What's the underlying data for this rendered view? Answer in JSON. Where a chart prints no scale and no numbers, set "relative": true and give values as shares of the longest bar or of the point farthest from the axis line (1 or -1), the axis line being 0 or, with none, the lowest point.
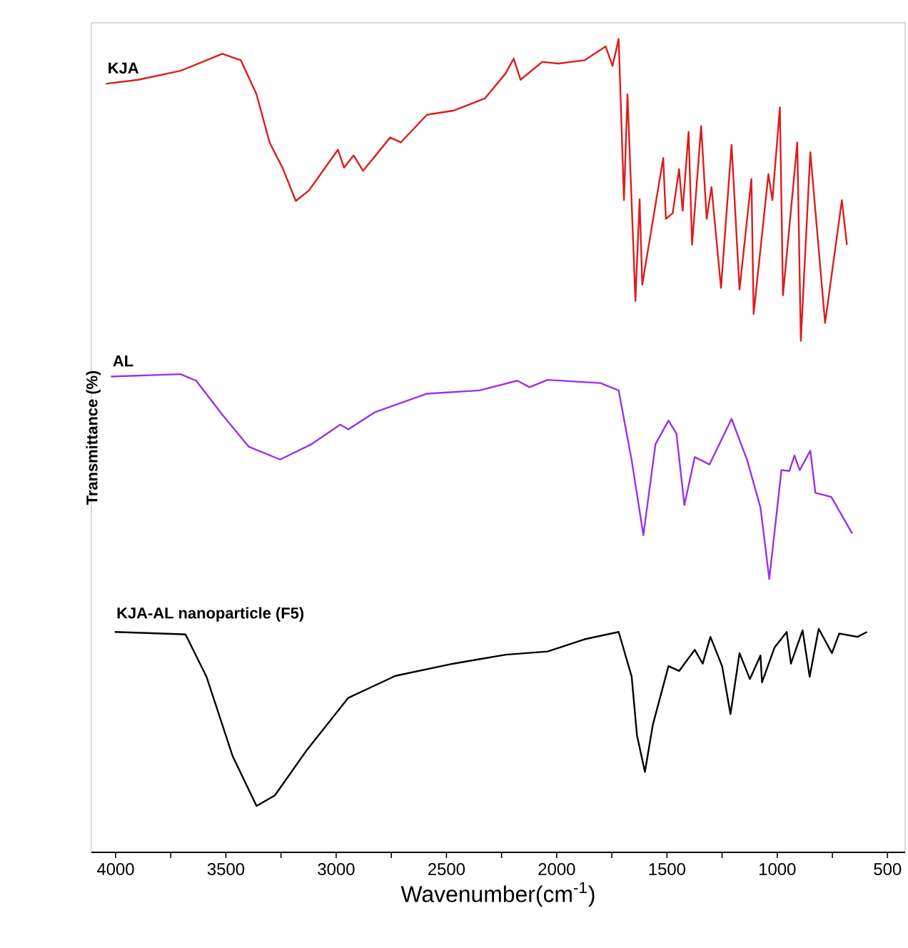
{
  "chart_data": {
    "type": "line",
    "relative": true,
    "xlabel": "Wavenumber(cm$^{-1}$)",
    "ylabel": "Transmittance (%)",
    "marker": "none",
    "line_style": "solid",
    "xlim": [
      4110,
      420
    ],
    "xticks": [
      4000,
      {
        "value": 3750,
        "label": null
      },
      3500,
      {
        "value": 3250,
        "label": null
      },
      3000,
      {
        "value": 2750,
        "label": null
      },
      2500,
      {
        "value": 2250,
        "label": null
      },
      2000,
      {
        "value": 1750,
        "label": null
      },
      1500,
      {
        "value": 1250,
        "label": null
      },
      1000,
      {
        "value": 750,
        "label": null
      },
      500
    ],
    "series": [
      {
        "name": "KJA",
        "color": "#dd1c1c",
        "x": [
          4044,
          3897,
          3706,
          3516,
          3432,
          3361,
          3302,
          3242,
          3183,
          3123,
          2992,
          2964,
          2921,
          2878,
          2755,
          2707,
          2588,
          2469,
          2326,
          2231,
          2195,
          2164,
          2065,
          1993,
          1874,
          1778,
          1747,
          1719,
          1695,
          1679,
          1643,
          1624,
          1612,
          1517,
          1505,
          1474,
          1445,
          1429,
          1402,
          1386,
          1345,
          1320,
          1298,
          1255,
          1207,
          1171,
          1117,
          1107,
          1040,
          1022,
          988,
          974,
          909,
          893,
          850,
          783,
          707,
          684
        ],
        "values": [
          0.945,
          0.95,
          0.961,
          0.982,
          0.974,
          0.932,
          0.873,
          0.841,
          0.801,
          0.814,
          0.864,
          0.842,
          0.857,
          0.838,
          0.879,
          0.873,
          0.907,
          0.912,
          0.927,
          0.958,
          0.976,
          0.95,
          0.972,
          0.97,
          0.974,
          0.991,
          0.967,
          1.0,
          0.802,
          0.932,
          0.678,
          0.803,
          0.698,
          0.854,
          0.779,
          0.786,
          0.84,
          0.789,
          0.886,
          0.747,
          0.893,
          0.779,
          0.818,
          0.694,
          0.87,
          0.692,
          0.828,
          0.662,
          0.834,
          0.802,
          0.916,
          0.685,
          0.873,
          0.629,
          0.861,
          0.651,
          0.802,
          0.747
        ]
      },
      {
        "name": "AL",
        "color": "#9b30e8",
        "x": [
          4021,
          3706,
          3635,
          3516,
          3397,
          3254,
          3111,
          2981,
          2945,
          2826,
          2588,
          2350,
          2179,
          2123,
          2041,
          1802,
          1719,
          1660,
          1607,
          1552,
          1493,
          1457,
          1421,
          1374,
          1307,
          1207,
          1136,
          1076,
          1036,
          981,
          945,
          922,
          898,
          850,
          827,
          755,
          660
        ],
        "values": [
          0.585,
          0.588,
          0.58,
          0.538,
          0.499,
          0.483,
          0.502,
          0.526,
          0.52,
          0.541,
          0.564,
          0.568,
          0.58,
          0.572,
          0.581,
          0.577,
          0.568,
          0.482,
          0.39,
          0.502,
          0.531,
          0.515,
          0.427,
          0.486,
          0.477,
          0.533,
          0.482,
          0.424,
          0.336,
          0.47,
          0.469,
          0.488,
          0.47,
          0.494,
          0.442,
          0.437,
          0.392
        ]
      },
      {
        "name": "KJA-AL nanoparticle (F5)",
        "color": "#000000",
        "x": [
          4004,
          3683,
          3588,
          3469,
          3361,
          3278,
          3135,
          2945,
          2731,
          2469,
          2362,
          2231,
          2041,
          1874,
          1719,
          1660,
          1636,
          1600,
          1564,
          1493,
          1445,
          1374,
          1338,
          1303,
          1250,
          1212,
          1171,
          1124,
          1076,
          1069,
          1012,
          957,
          938,
          885,
          853,
          812,
          752,
          719,
          636,
          593
        ],
        "values": [
          0.271,
          0.268,
          0.216,
          0.118,
          0.057,
          0.07,
          0.125,
          0.19,
          0.217,
          0.232,
          0.237,
          0.243,
          0.247,
          0.262,
          0.271,
          0.216,
          0.144,
          0.099,
          0.157,
          0.229,
          0.223,
          0.249,
          0.232,
          0.265,
          0.229,
          0.17,
          0.245,
          0.213,
          0.242,
          0.209,
          0.252,
          0.271,
          0.232,
          0.273,
          0.216,
          0.275,
          0.245,
          0.269,
          0.265,
          0.271
        ]
      }
    ]
  }
}
